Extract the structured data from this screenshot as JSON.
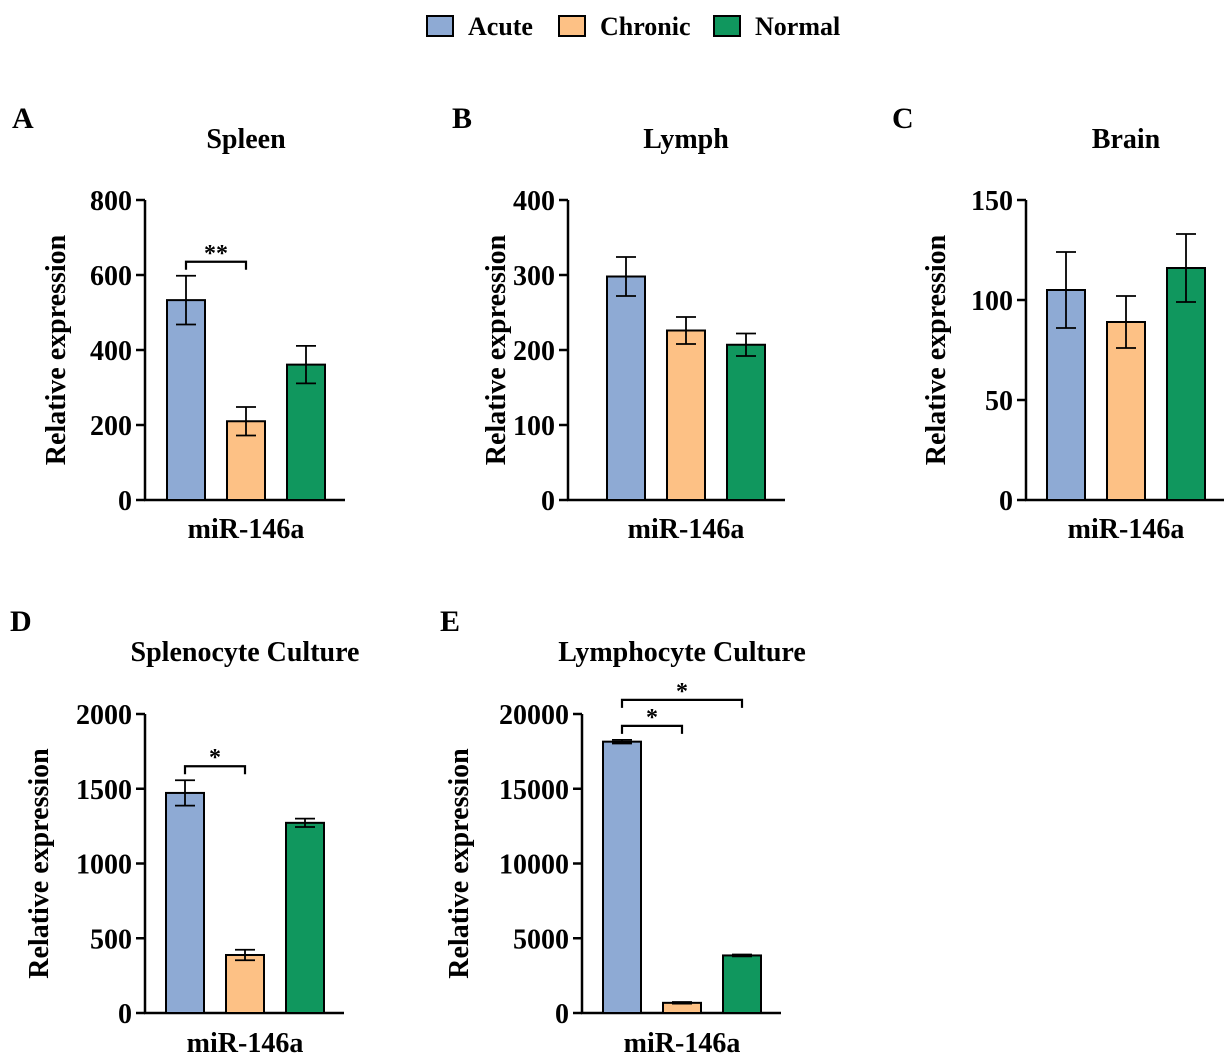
{
  "legend": {
    "position": "top-center",
    "items": [
      {
        "label": "Acute",
        "color": "#8eaad4"
      },
      {
        "label": "Chronic",
        "color": "#fdc185"
      },
      {
        "label": "Normal",
        "color": "#10975e"
      }
    ]
  },
  "chart_data": [
    {
      "type": "bar",
      "panel_letter": "A",
      "title": "Spleen",
      "xlabel": "miR-146a",
      "ylabel": "Relative expression",
      "ylim": [
        0,
        800
      ],
      "yticks": [
        0,
        200,
        400,
        600,
        800
      ],
      "categories": [
        "miR-146a"
      ],
      "series": [
        {
          "name": "Acute",
          "values": [
            533
          ],
          "error": [
            65
          ]
        },
        {
          "name": "Chronic",
          "values": [
            210
          ],
          "error": [
            38
          ]
        },
        {
          "name": "Normal",
          "values": [
            361
          ],
          "error": [
            50
          ]
        }
      ],
      "annotations": [
        {
          "from": 0,
          "to": 1,
          "label": "**"
        }
      ]
    },
    {
      "type": "bar",
      "panel_letter": "B",
      "title": "Lymph",
      "xlabel": "miR-146a",
      "ylabel": "Relative expression",
      "ylim": [
        0,
        400
      ],
      "yticks": [
        0,
        100,
        200,
        300,
        400
      ],
      "categories": [
        "miR-146a"
      ],
      "series": [
        {
          "name": "Acute",
          "values": [
            298
          ],
          "error": [
            26
          ]
        },
        {
          "name": "Chronic",
          "values": [
            226
          ],
          "error": [
            18
          ]
        },
        {
          "name": "Normal",
          "values": [
            207
          ],
          "error": [
            15
          ]
        }
      ],
      "annotations": []
    },
    {
      "type": "bar",
      "panel_letter": "C",
      "title": "Brain",
      "xlabel": "miR-146a",
      "ylabel": "Relative expression",
      "ylim": [
        0,
        150
      ],
      "yticks": [
        0,
        50,
        100,
        150
      ],
      "categories": [
        "miR-146a"
      ],
      "series": [
        {
          "name": "Acute",
          "values": [
            105
          ],
          "error": [
            19
          ]
        },
        {
          "name": "Chronic",
          "values": [
            89
          ],
          "error": [
            13
          ]
        },
        {
          "name": "Normal",
          "values": [
            116
          ],
          "error": [
            17
          ]
        }
      ],
      "annotations": []
    },
    {
      "type": "bar",
      "panel_letter": "D",
      "title": "Splenocyte Culture",
      "xlabel": "miR-146a",
      "ylabel": "Relative expression",
      "ylim": [
        0,
        2000
      ],
      "yticks": [
        0,
        500,
        1000,
        1500,
        2000
      ],
      "categories": [
        "miR-146a"
      ],
      "series": [
        {
          "name": "Acute",
          "values": [
            1472
          ],
          "error": [
            85
          ]
        },
        {
          "name": "Chronic",
          "values": [
            388
          ],
          "error": [
            35
          ]
        },
        {
          "name": "Normal",
          "values": [
            1272
          ],
          "error": [
            28
          ]
        }
      ],
      "annotations": [
        {
          "from": 0,
          "to": 1,
          "label": "*"
        }
      ]
    },
    {
      "type": "bar",
      "panel_letter": "E",
      "title": "Lymphocyte Culture",
      "xlabel": "miR-146a",
      "ylabel": "Relative expression",
      "ylim": [
        0,
        20000
      ],
      "yticks": [
        0,
        5000,
        10000,
        15000,
        20000
      ],
      "categories": [
        "miR-146a"
      ],
      "series": [
        {
          "name": "Acute",
          "values": [
            18150
          ],
          "error": [
            120
          ]
        },
        {
          "name": "Chronic",
          "values": [
            680
          ],
          "error": [
            50
          ]
        },
        {
          "name": "Normal",
          "values": [
            3850
          ],
          "error": [
            60
          ]
        }
      ],
      "annotations": [
        {
          "from": 0,
          "to": 1,
          "label": "*"
        },
        {
          "from": 0,
          "to": 2,
          "label": "*"
        }
      ]
    }
  ]
}
